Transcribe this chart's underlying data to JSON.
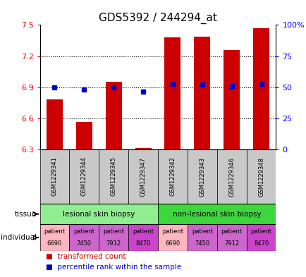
{
  "title": "GDS5392 / 244294_at",
  "samples": [
    "GSM1229341",
    "GSM1229344",
    "GSM1229345",
    "GSM1229347",
    "GSM1229342",
    "GSM1229343",
    "GSM1229346",
    "GSM1229348"
  ],
  "red_values": [
    6.78,
    6.565,
    6.95,
    6.315,
    7.38,
    7.39,
    7.255,
    7.47
  ],
  "blue_values": [
    6.9,
    6.875,
    6.9,
    6.855,
    6.935,
    6.925,
    6.91,
    6.935
  ],
  "ylim_left": [
    6.3,
    7.5
  ],
  "ylim_right": [
    0,
    100
  ],
  "yticks_left": [
    6.3,
    6.6,
    6.9,
    7.2,
    7.5
  ],
  "yticks_right": [
    0,
    25,
    50,
    75,
    100
  ],
  "ytick_labels_left": [
    "6.3",
    "6.6",
    "6.9",
    "7.2",
    "7.5"
  ],
  "ytick_labels_right": [
    "0",
    "25",
    "50",
    "75",
    "100%"
  ],
  "tissue_groups": [
    {
      "label": "lesional skin biopsy",
      "start": 0,
      "end": 4,
      "color": "#90EE90"
    },
    {
      "label": "non-lesional skin biopsy",
      "start": 4,
      "end": 8,
      "color": "#3DD63D"
    }
  ],
  "indiv_colors": [
    "#FFB6C1",
    "#CC66CC",
    "#CC66CC",
    "#CC44CC",
    "#FFB6C1",
    "#CC66CC",
    "#CC66CC",
    "#CC44CC"
  ],
  "indiv_numbers": [
    "6690",
    "7450",
    "7912",
    "8470",
    "6690",
    "7450",
    "7912",
    "8470"
  ],
  "bar_color": "#CC0000",
  "dot_color": "#0000CC",
  "bar_width": 0.55,
  "title_fontsize": 11,
  "tick_fontsize": 8,
  "gsm_fontsize": 6,
  "annot_fontsize": 7.5
}
